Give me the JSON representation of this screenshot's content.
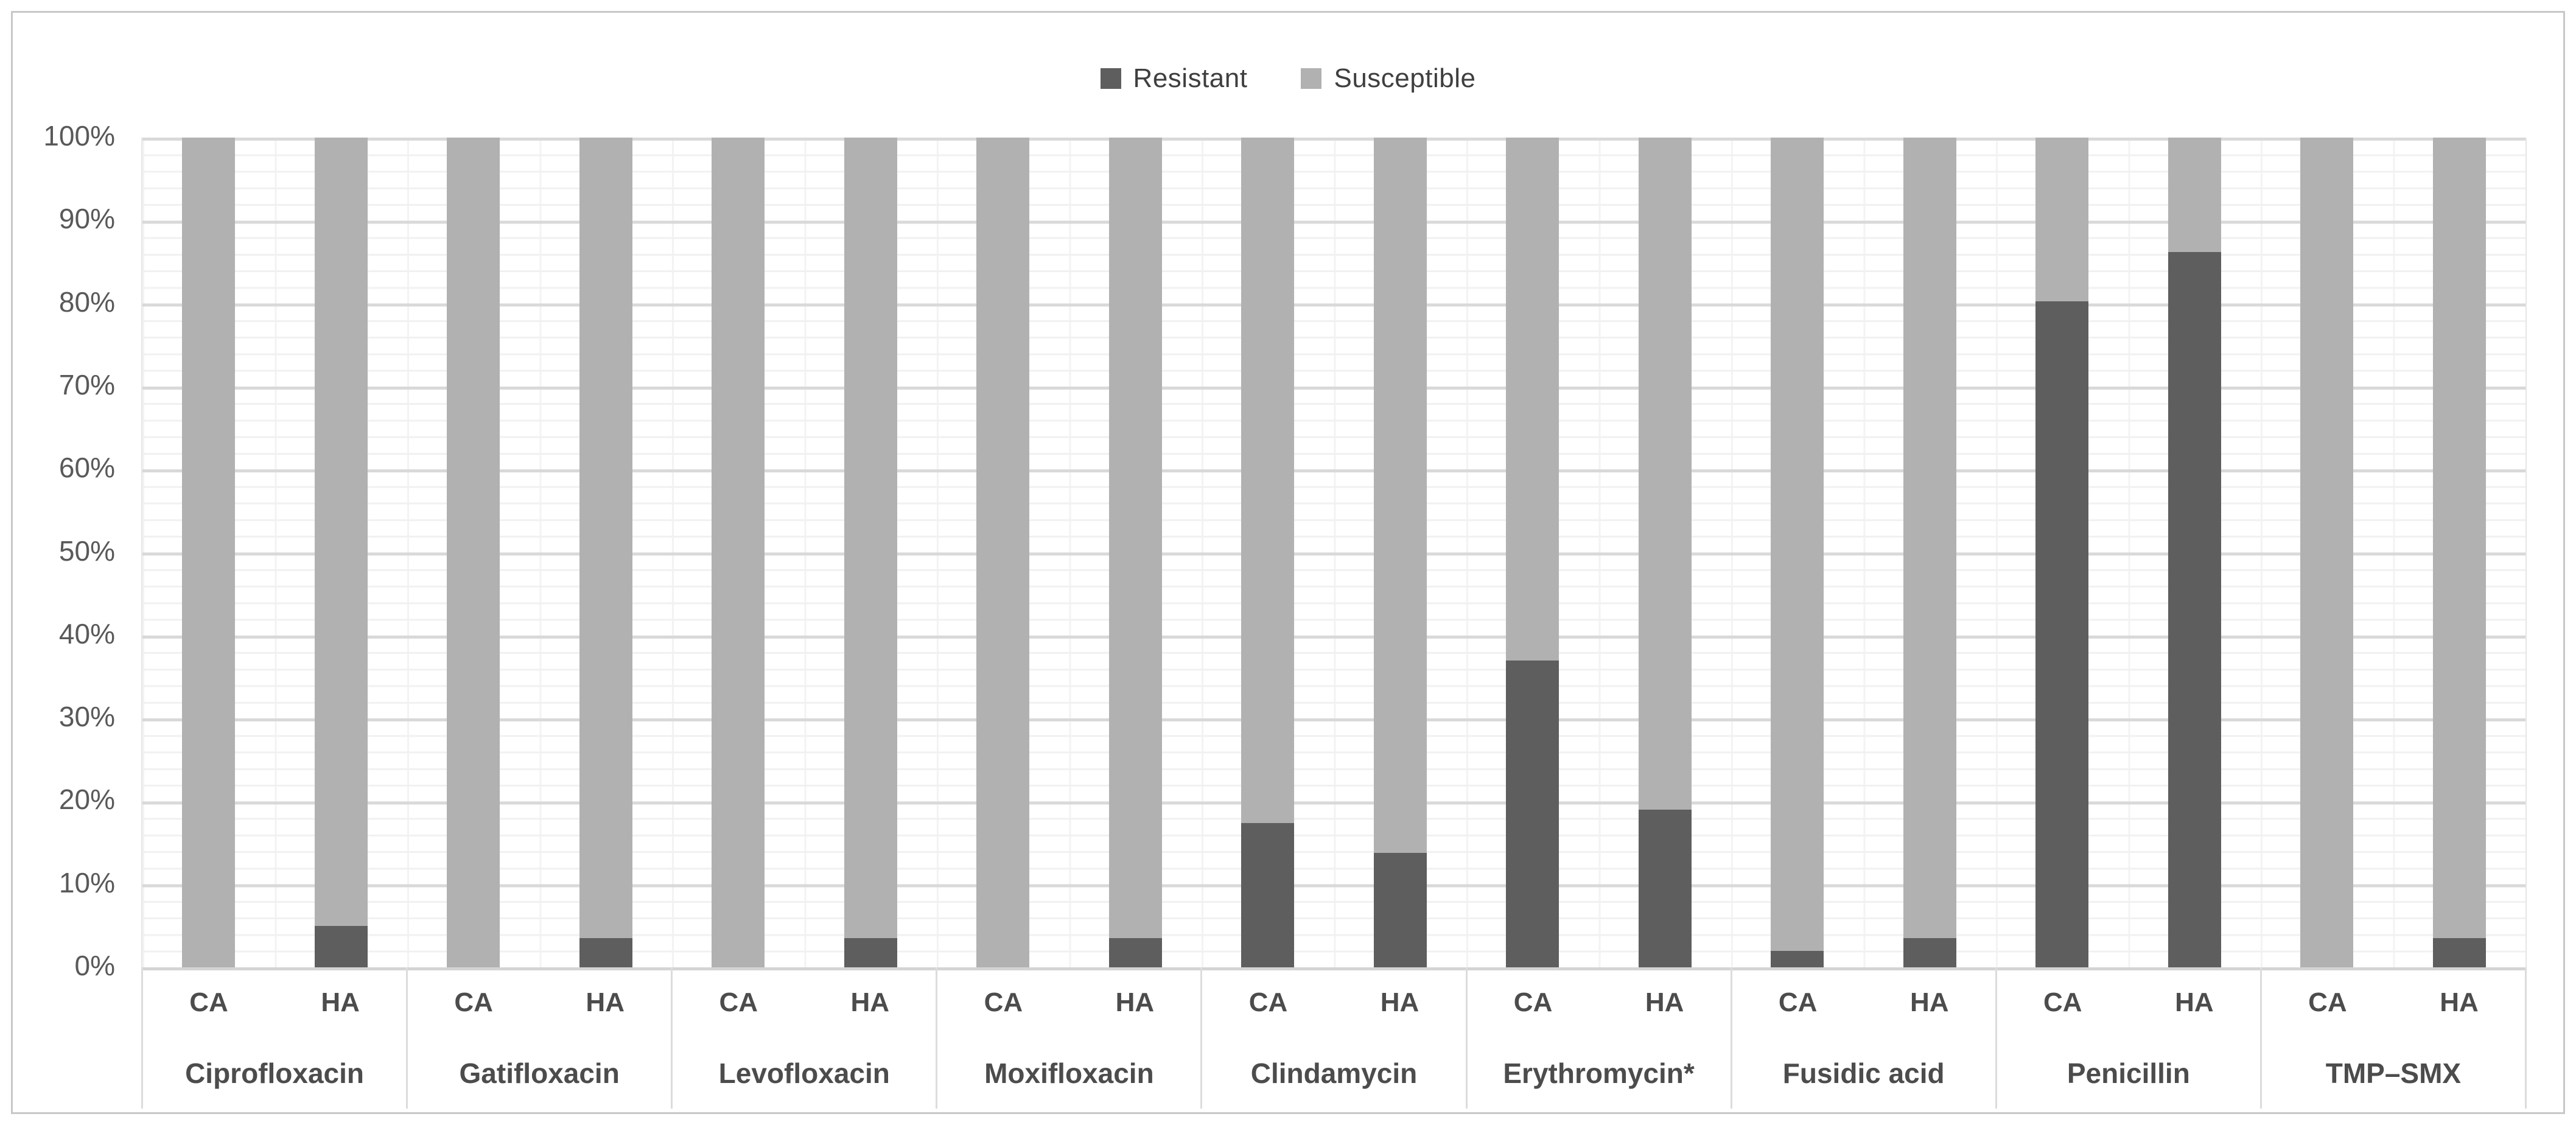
{
  "figure": {
    "background": "#ffffff",
    "border_color": "#c8c8c8"
  },
  "legend": {
    "position": "top",
    "items": [
      {
        "label": "Resistant",
        "color": "#5e5e5e"
      },
      {
        "label": "Susceptible",
        "color": "#b1b1b1"
      }
    ]
  },
  "y_axis": {
    "ticks": [
      "100%",
      "90%",
      "80%",
      "70%",
      "60%",
      "50%",
      "40%",
      "30%",
      "20%",
      "10%",
      "0%"
    ]
  },
  "chart_data": {
    "type": "bar",
    "stacking": "percent",
    "orientation": "vertical",
    "title": "",
    "xlabel": "",
    "ylabel": "",
    "ylim": [
      0,
      100
    ],
    "y_major_unit": 10,
    "y_minor_unit": 2,
    "y_tick_labels": [
      "0%",
      "10%",
      "20%",
      "30%",
      "40%",
      "50%",
      "60%",
      "70%",
      "80%",
      "90%",
      "100%"
    ],
    "legend_position": "top",
    "grid": {
      "horizontal_major_color": "#d9d9d9",
      "horizontal_minor_color": "#f1f1f1",
      "vertical_category_color": "#f3f3f3"
    },
    "bar_sublabels": [
      "CA",
      "HA"
    ],
    "series": [
      {
        "name": "Resistant",
        "color": "#5e5e5e",
        "values": [
          0,
          5,
          0,
          3.5,
          0,
          3.5,
          0,
          3.5,
          17.4,
          13.8,
          37,
          19,
          2,
          3.5,
          80.3,
          86.2,
          0,
          3.5
        ]
      },
      {
        "name": "Susceptible",
        "color": "#b1b1b1",
        "values": [
          100,
          95,
          100,
          96.5,
          100,
          96.5,
          100,
          96.5,
          82.6,
          86.2,
          63,
          81,
          98,
          96.5,
          19.7,
          13.8,
          100,
          96.5
        ]
      }
    ],
    "groups": [
      {
        "label": "Ciprofloxacin",
        "bars": [
          {
            "label": "CA",
            "resistant": 0,
            "susceptible": 100
          },
          {
            "label": "HA",
            "resistant": 5,
            "susceptible": 95
          }
        ]
      },
      {
        "label": "Gatifloxacin",
        "bars": [
          {
            "label": "CA",
            "resistant": 0,
            "susceptible": 100
          },
          {
            "label": "HA",
            "resistant": 3.5,
            "susceptible": 96.5
          }
        ]
      },
      {
        "label": "Levofloxacin",
        "bars": [
          {
            "label": "CA",
            "resistant": 0,
            "susceptible": 100
          },
          {
            "label": "HA",
            "resistant": 3.5,
            "susceptible": 96.5
          }
        ]
      },
      {
        "label": "Moxifloxacin",
        "bars": [
          {
            "label": "CA",
            "resistant": 0,
            "susceptible": 100
          },
          {
            "label": "HA",
            "resistant": 3.5,
            "susceptible": 96.5
          }
        ]
      },
      {
        "label": "Clindamycin",
        "bars": [
          {
            "label": "CA",
            "resistant": 17.4,
            "susceptible": 82.6
          },
          {
            "label": "HA",
            "resistant": 13.8,
            "susceptible": 86.2
          }
        ]
      },
      {
        "label": "Erythromycin*",
        "bars": [
          {
            "label": "CA",
            "resistant": 37,
            "susceptible": 63
          },
          {
            "label": "HA",
            "resistant": 19,
            "susceptible": 81
          }
        ]
      },
      {
        "label": "Fusidic acid",
        "bars": [
          {
            "label": "CA",
            "resistant": 2,
            "susceptible": 98
          },
          {
            "label": "HA",
            "resistant": 3.5,
            "susceptible": 96.5
          }
        ]
      },
      {
        "label": "Penicillin",
        "bars": [
          {
            "label": "CA",
            "resistant": 80.3,
            "susceptible": 19.7
          },
          {
            "label": "HA",
            "resistant": 86.2,
            "susceptible": 13.8
          }
        ]
      },
      {
        "label": "TMP–SMX",
        "bars": [
          {
            "label": "CA",
            "resistant": 0,
            "susceptible": 100
          },
          {
            "label": "HA",
            "resistant": 3.5,
            "susceptible": 96.5
          }
        ]
      }
    ]
  }
}
